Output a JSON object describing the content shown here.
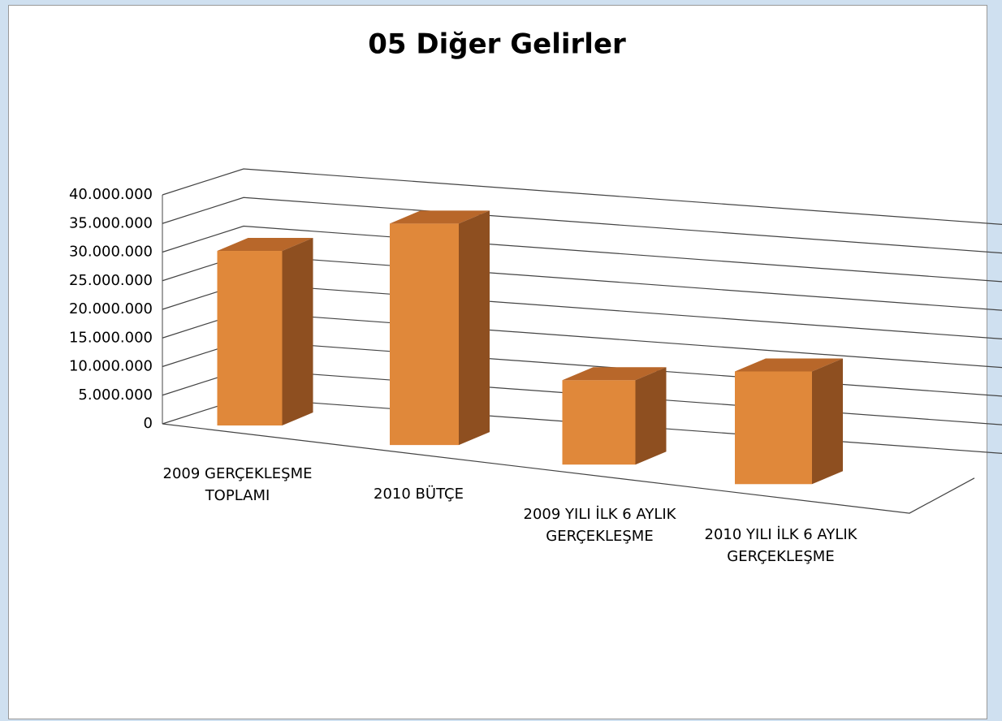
{
  "chart_data": {
    "type": "bar3d",
    "title": "05 Diğer Gelirler",
    "categories": [
      "2009 GERÇEKLEŞME TOPLAMI",
      "2010 BÜTÇE",
      "2009 YILI İLK 6 AYLIK GERÇEKLEŞME",
      "2010 YILI İLK 6 AYLIK GERÇEKLEŞME"
    ],
    "values": [
      30500000,
      35500000,
      12500000,
      15500000
    ],
    "color": "#e0883a",
    "ylim": [
      0,
      40000000
    ],
    "yticks": [
      0,
      {
        "value": 5000000,
        "label": "5.000.000"
      },
      {
        "value": 10000000,
        "label": "10.000.000"
      },
      {
        "value": 15000000,
        "label": "15.000.000"
      },
      {
        "value": 20000000,
        "label": "20.000.000"
      },
      {
        "value": 25000000,
        "label": "25.000.000"
      },
      {
        "value": 30000000,
        "label": "30.000.000"
      },
      {
        "value": 35000000,
        "label": "35.000.000"
      },
      {
        "value": 40000000,
        "label": "40.000.000"
      }
    ],
    "grid": true
  }
}
